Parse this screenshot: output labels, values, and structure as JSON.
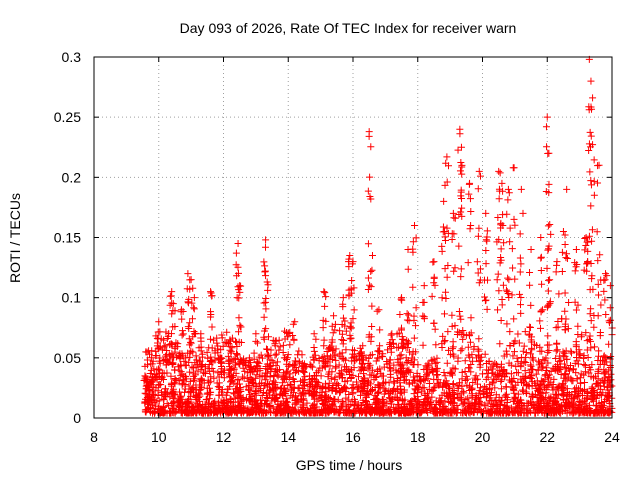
{
  "chart_data": {
    "type": "scatter",
    "title": "Day 093 of 2026, Rate Of TEC Index for receiver warn",
    "xlabel": "GPS time / hours",
    "ylabel": "ROTI / TECUs",
    "xlim": [
      8,
      24
    ],
    "ylim": [
      0,
      0.3
    ],
    "x_ticks": [
      8,
      10,
      12,
      14,
      16,
      18,
      20,
      22,
      24
    ],
    "y_ticks": [
      0,
      0.05,
      0.1,
      0.15,
      0.2,
      0.25,
      0.3
    ],
    "x_tick_labels": [
      "8",
      "10",
      "12",
      "14",
      "16",
      "18",
      "20",
      "22",
      "24"
    ],
    "y_tick_labels": [
      "0",
      "0.05",
      "0.1",
      "0.15",
      "0.2",
      "0.25",
      "0.3"
    ],
    "grid": true,
    "marker": "+",
    "series": [
      {
        "name": "ROTI",
        "color": "#ff0000",
        "x": [
          9.6,
          9.7,
          9.8,
          10.0,
          10.2,
          10.4,
          10.45,
          10.7,
          10.9,
          11.0,
          11.1,
          11.3,
          11.6,
          11.9,
          12.2,
          12.45,
          12.5,
          12.8,
          13.0,
          13.3,
          13.35,
          13.6,
          13.9,
          14.2,
          14.5,
          14.8,
          15.1,
          15.4,
          15.7,
          15.9,
          16.0,
          16.3,
          16.5,
          16.55,
          16.8,
          17.2,
          17.5,
          17.7,
          17.9,
          18.2,
          18.5,
          18.8,
          18.9,
          19.1,
          19.3,
          19.35,
          19.6,
          19.9,
          20.1,
          20.5,
          20.6,
          20.8,
          20.95,
          21.2,
          21.5,
          21.8,
          22.0,
          22.05,
          22.3,
          22.5,
          22.6,
          22.9,
          23.2,
          23.3,
          23.35,
          23.4,
          23.6,
          23.8,
          23.95
        ],
        "y": [
          0.055,
          0.03,
          0.045,
          0.08,
          0.06,
          0.105,
          0.095,
          0.09,
          0.12,
          0.115,
          0.1,
          0.07,
          0.105,
          0.05,
          0.065,
          0.145,
          0.11,
          0.05,
          0.07,
          0.148,
          0.113,
          0.06,
          0.05,
          0.08,
          0.045,
          0.07,
          0.105,
          0.085,
          0.1,
          0.135,
          0.13,
          0.06,
          0.238,
          0.182,
          0.09,
          0.07,
          0.1,
          0.14,
          0.16,
          0.11,
          0.13,
          0.18,
          0.217,
          0.17,
          0.24,
          0.225,
          0.195,
          0.205,
          0.17,
          0.205,
          0.195,
          0.19,
          0.208,
          0.19,
          0.14,
          0.15,
          0.25,
          0.22,
          0.13,
          0.155,
          0.19,
          0.14,
          0.15,
          0.298,
          0.28,
          0.266,
          0.21,
          0.12,
          0.11
        ]
      }
    ],
    "baseline_cloud": {
      "x_range": [
        9.55,
        24.0
      ],
      "typical_max": 0.05
    }
  }
}
